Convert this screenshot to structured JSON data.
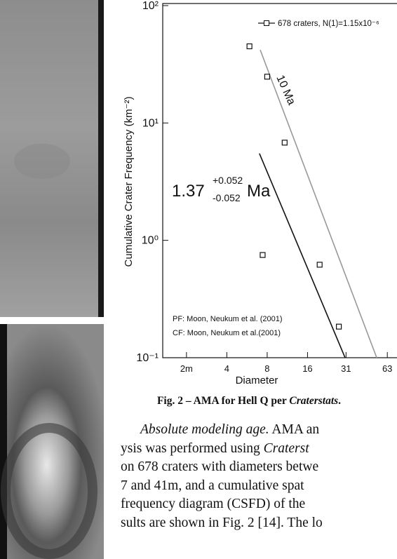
{
  "chart_data": {
    "type": "scatter",
    "y_label": "Cumulative Crater Frequency (km⁻²)",
    "x_label": "Diameter",
    "log_x": true,
    "log_y": true,
    "xlim": [
      1.33,
      74.4
    ],
    "ylim": [
      0.1,
      100
    ],
    "xticks": [
      {
        "value": 2,
        "label": "2m"
      },
      4,
      8,
      16,
      31,
      63
    ],
    "yticks": [
      {
        "value": 0.1,
        "label": "10⁻¹"
      },
      {
        "value": 1,
        "label": "10⁰"
      },
      {
        "value": 10,
        "label": "10¹"
      },
      {
        "value": 100,
        "label": "10²"
      }
    ],
    "series": [
      {
        "name": "678 craters, N(1)=1.15x10⁻⁶",
        "color": "#111111",
        "x": [
          5.9,
          8,
          10.8,
          7.4,
          19.7,
          27.4
        ],
        "values": [
          45,
          24.8,
          6.8,
          0.75,
          0.62,
          0.184
        ]
      }
    ],
    "isochrons": [
      {
        "label": "10 Ma",
        "color": "#999999",
        "x": [
          7.1,
          52.5
        ],
        "values": [
          41.9,
          0.1
        ]
      },
      {
        "label": {
          "age": "1.37",
          "plus": "+0.052",
          "minus": "-0.052",
          "unit": "Ma"
        },
        "color": "#111111",
        "x": [
          7.0,
          30.5
        ],
        "values": [
          5.5,
          0.1
        ]
      }
    ],
    "notes": [
      "PF: Moon, Neukum et al. (2001)",
      "CF: Moon, Neukum et al.(2001)"
    ]
  },
  "caption": [
    {
      "text": "Fig. 2 – AMA for Hell Q per ",
      "italic": false
    },
    {
      "text": "Craterstats",
      "italic": true
    },
    {
      "text": ".",
      "italic": false
    }
  ],
  "body": [
    [
      {
        "text": "Absolute modeling age.",
        "italic": true
      },
      {
        "text": " AMA an",
        "italic": false
      }
    ],
    [
      {
        "text": "ysis was performed using ",
        "italic": false
      },
      {
        "text": "Craterst",
        "italic": true
      }
    ],
    [
      {
        "text": "on 678 craters with diameters betwe",
        "italic": false
      }
    ],
    [
      {
        "text": "7 and 41m, and a cumulative spat",
        "italic": false
      }
    ],
    [
      {
        "text": "frequency diagram (CSFD) of the",
        "italic": false
      }
    ],
    [
      {
        "text": "sults are shown in Fig. 2 [14]. The lo",
        "italic": false
      }
    ]
  ]
}
